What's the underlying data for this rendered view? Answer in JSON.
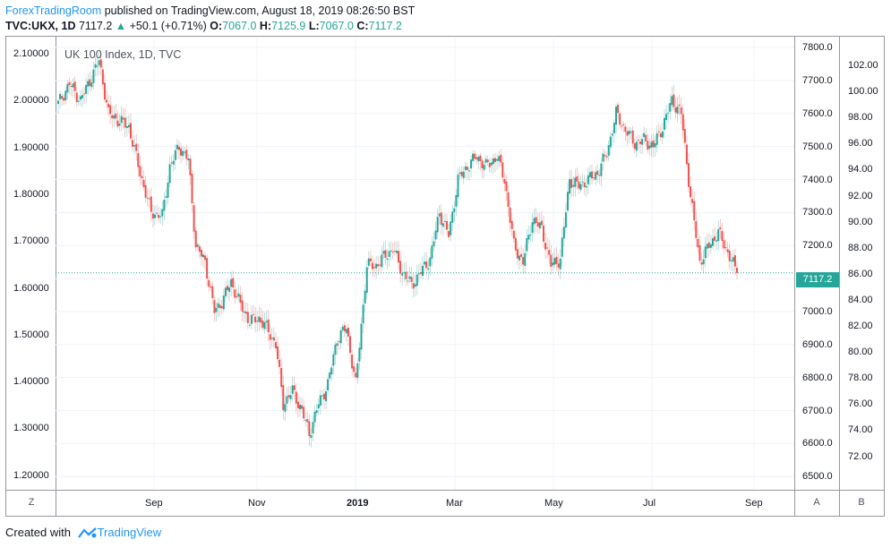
{
  "header": {
    "author": "ForexTradingRoom",
    "published": " published on TradingView.com, August 18, 2019 08:26:50 BST",
    "symbol": "TVC:UKX, 1D",
    "last": "7117.2",
    "arrow": "▲",
    "change": "+50.1 (+0.71%)",
    "o_label": "O:",
    "o_val": "7067.0",
    "h_label": "H:",
    "h_val": "7125.9",
    "l_label": "L:",
    "l_val": "7067.0",
    "c_label": "C:",
    "c_val": "7117.2"
  },
  "colors": {
    "up": "#26a69a",
    "down": "#ef5350",
    "accent": "#2196f3",
    "price_line": "#26a69a"
  },
  "footer": {
    "created_with": "Created with ",
    "brand": "TradingView"
  },
  "buttons": {
    "zoom": "Z",
    "auto": "A",
    "bar_mode": "B"
  },
  "price_tag": "7117.2",
  "chart_data": {
    "type": "candlestick",
    "title": "UK 100 Index, 1D, TVC",
    "left_axis_ticks": [
      "2.10000",
      "2.00000",
      "1.90000",
      "1.80000",
      "1.70000",
      "1.60000",
      "1.50000",
      "1.40000",
      "1.30000",
      "1.20000"
    ],
    "right_price_ticks": [
      "7800.0",
      "7700.0",
      "7600.0",
      "7500.0",
      "7400.0",
      "7300.0",
      "7200.0",
      "7100.0",
      "7000.0",
      "6900.0",
      "6800.0",
      "6700.0",
      "6600.0",
      "6500.0"
    ],
    "right_second_ticks": [
      "102.00",
      "100.00",
      "98.00",
      "96.00",
      "94.00",
      "92.00",
      "90.00",
      "88.00",
      "86.00",
      "84.00",
      "82.00",
      "80.00",
      "78.00",
      "76.00",
      "74.00",
      "72.00"
    ],
    "x_ticks": [
      "Sep",
      "Nov",
      "2019",
      "Mar",
      "May",
      "Jul",
      "Sep"
    ],
    "ylim": [
      6460,
      7830
    ],
    "last_price": 7117.2,
    "approx_close_path": [
      [
        0,
        7630
      ],
      [
        6,
        7690
      ],
      [
        12,
        7640
      ],
      [
        17,
        7700
      ],
      [
        22,
        7760
      ],
      [
        27,
        7600
      ],
      [
        32,
        7580
      ],
      [
        38,
        7560
      ],
      [
        44,
        7420
      ],
      [
        50,
        7300
      ],
      [
        56,
        7290
      ],
      [
        60,
        7440
      ],
      [
        65,
        7500
      ],
      [
        70,
        7460
      ],
      [
        74,
        7200
      ],
      [
        79,
        7150
      ],
      [
        84,
        7000
      ],
      [
        88,
        7030
      ],
      [
        93,
        7090
      ],
      [
        98,
        7020
      ],
      [
        103,
        6970
      ],
      [
        108,
        6980
      ],
      [
        112,
        6950
      ],
      [
        117,
        6900
      ],
      [
        121,
        6720
      ],
      [
        126,
        6760
      ],
      [
        131,
        6700
      ],
      [
        135,
        6630
      ],
      [
        140,
        6720
      ],
      [
        145,
        6780
      ],
      [
        150,
        6920
      ],
      [
        155,
        6950
      ],
      [
        160,
        6780
      ],
      [
        166,
        7140
      ],
      [
        171,
        7140
      ],
      [
        176,
        7170
      ],
      [
        180,
        7190
      ],
      [
        185,
        7120
      ],
      [
        190,
        7080
      ],
      [
        195,
        7120
      ],
      [
        200,
        7160
      ],
      [
        205,
        7300
      ],
      [
        210,
        7230
      ],
      [
        215,
        7400
      ],
      [
        220,
        7440
      ],
      [
        225,
        7470
      ],
      [
        230,
        7440
      ],
      [
        236,
        7470
      ],
      [
        240,
        7400
      ],
      [
        245,
        7200
      ],
      [
        250,
        7150
      ],
      [
        255,
        7280
      ],
      [
        260,
        7250
      ],
      [
        265,
        7140
      ],
      [
        270,
        7160
      ],
      [
        275,
        7400
      ],
      [
        280,
        7380
      ],
      [
        285,
        7400
      ],
      [
        290,
        7420
      ],
      [
        295,
        7480
      ],
      [
        300,
        7600
      ],
      [
        305,
        7550
      ],
      [
        310,
        7510
      ],
      [
        315,
        7520
      ],
      [
        320,
        7500
      ],
      [
        325,
        7560
      ],
      [
        330,
        7640
      ],
      [
        335,
        7600
      ],
      [
        340,
        7350
      ],
      [
        345,
        7150
      ],
      [
        350,
        7200
      ],
      [
        355,
        7240
      ],
      [
        360,
        7180
      ],
      [
        365,
        7117
      ]
    ]
  }
}
